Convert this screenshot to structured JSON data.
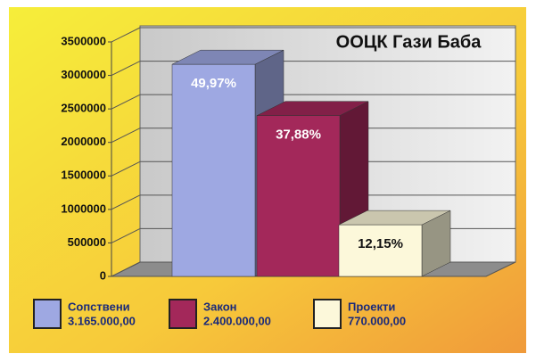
{
  "chart_data": {
    "type": "bar3d",
    "title": "ООЦК Гази Баба",
    "categories": [
      "Сопствени",
      "Закон",
      "Проекти"
    ],
    "values": [
      3165000,
      2400000,
      770000
    ],
    "value_labels": [
      "3.165.000,00",
      "2.400.000,00",
      "770.000,00"
    ],
    "annotations": [
      "49,97%",
      "37,88%",
      "12,15%"
    ],
    "colors": [
      "#9ea8e2",
      "#a3285a",
      "#fcf8da"
    ],
    "ylim": [
      0,
      3500000
    ],
    "yticks": [
      0,
      500000,
      1000000,
      1500000,
      2000000,
      2500000,
      3000000,
      3500000
    ],
    "grid": true
  }
}
